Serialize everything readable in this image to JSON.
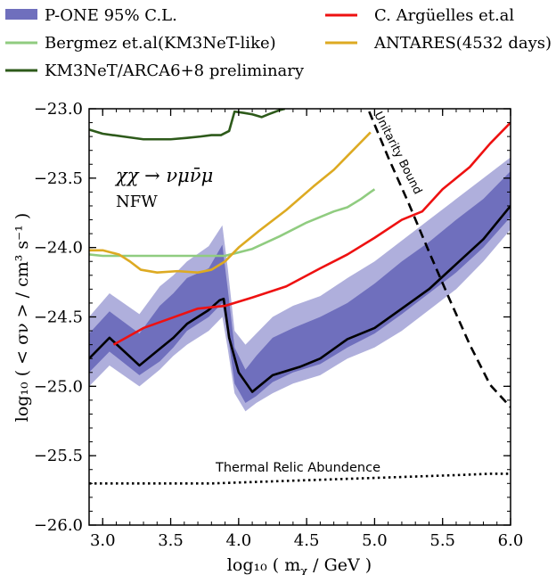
{
  "chart_data": {
    "type": "line",
    "xlabel": "log₁₀ ( m",
    "xlabel_sub": "χ",
    "xlabel_tail": " / GeV )",
    "ylabel": "log₁₀ ( < σν > / cm³ s⁻¹ )",
    "xlim": [
      2.9,
      6.0
    ],
    "ylim": [
      -26.0,
      -23.0
    ],
    "xticks": [
      "3.0",
      "3.5",
      "4.0",
      "4.5",
      "5.0",
      "5.5",
      "6.0"
    ],
    "yticks": [
      "−23.0",
      "−23.5",
      "−24.0",
      "−24.5",
      "−25.0",
      "−25.5",
      "−26.0"
    ],
    "legend": {
      "placement": "top",
      "entries": [
        {
          "label": "P-ONE 95% C.L.",
          "color": "#6f6fbd",
          "kind": "band"
        },
        {
          "label": "C. Argüelles et.al",
          "color": "#ee1111",
          "kind": "line"
        },
        {
          "label": "Bergmez et.al(KM3NeT-like)",
          "color": "#90cc80",
          "kind": "line"
        },
        {
          "label": "ANTARES(4532 days)",
          "color": "#ddaa22",
          "kind": "line"
        },
        {
          "label": "KM3NeT/ARCA6+8 preliminary",
          "color": "#2d5a1a",
          "kind": "line"
        }
      ]
    },
    "annotations": {
      "channel_formula": "χχ → νμν̄μ",
      "profile": "NFW",
      "unitarity": "Unitarity Bound",
      "thermal": "Thermal Relic Abundence"
    },
    "series": [
      {
        "name": "P-ONE 95% C.L.",
        "role": "outer_band",
        "color": "#afafdc",
        "x": [
          2.9,
          3.05,
          3.27,
          3.42,
          3.52,
          3.62,
          3.78,
          3.88,
          3.92,
          3.97,
          4.05,
          4.13,
          4.25,
          4.4,
          4.6,
          4.8,
          5.0,
          5.2,
          5.4,
          5.6,
          5.8,
          6.0
        ],
        "y_upper": [
          -24.5,
          -24.33,
          -24.48,
          -24.28,
          -24.2,
          -24.1,
          -23.99,
          -23.84,
          -24.15,
          -24.6,
          -24.7,
          -24.62,
          -24.5,
          -24.42,
          -24.35,
          -24.22,
          -24.1,
          -23.95,
          -23.8,
          -23.65,
          -23.5,
          -23.35
        ],
        "y_lower": [
          -25.0,
          -24.85,
          -25.0,
          -24.88,
          -24.78,
          -24.7,
          -24.6,
          -24.5,
          -24.73,
          -25.05,
          -25.18,
          -25.12,
          -25.05,
          -24.98,
          -24.92,
          -24.8,
          -24.72,
          -24.6,
          -24.45,
          -24.3,
          -24.1,
          -23.87
        ]
      },
      {
        "name": "P-ONE 95% C.L.",
        "role": "inner_band",
        "color": "#6f6fbd",
        "x": [
          2.9,
          3.05,
          3.27,
          3.42,
          3.52,
          3.62,
          3.78,
          3.88,
          3.92,
          3.97,
          4.05,
          4.13,
          4.25,
          4.4,
          4.6,
          4.8,
          5.0,
          5.2,
          5.4,
          5.6,
          5.8,
          6.0
        ],
        "y_upper": [
          -24.62,
          -24.46,
          -24.62,
          -24.42,
          -24.33,
          -24.22,
          -24.15,
          -23.98,
          -24.3,
          -24.72,
          -24.88,
          -24.78,
          -24.65,
          -24.58,
          -24.5,
          -24.4,
          -24.26,
          -24.1,
          -23.96,
          -23.8,
          -23.65,
          -23.45
        ],
        "y_lower": [
          -24.9,
          -24.75,
          -24.92,
          -24.82,
          -24.72,
          -24.6,
          -24.5,
          -24.4,
          -24.62,
          -24.98,
          -25.12,
          -25.07,
          -24.97,
          -24.9,
          -24.84,
          -24.72,
          -24.62,
          -24.48,
          -24.33,
          -24.18,
          -24.0,
          -23.78
        ]
      },
      {
        "name": "P-ONE median",
        "color": "#000000",
        "x": [
          2.9,
          3.05,
          3.27,
          3.42,
          3.52,
          3.62,
          3.78,
          3.86,
          3.89,
          3.93,
          4.0,
          4.1,
          4.25,
          4.45,
          4.6,
          4.8,
          5.0,
          5.2,
          5.4,
          5.6,
          5.8,
          6.0
        ],
        "y": [
          -24.8,
          -24.65,
          -24.85,
          -24.73,
          -24.65,
          -24.55,
          -24.45,
          -24.38,
          -24.37,
          -24.65,
          -24.9,
          -25.04,
          -24.92,
          -24.86,
          -24.8,
          -24.66,
          -24.58,
          -24.44,
          -24.3,
          -24.12,
          -23.94,
          -23.7
        ]
      },
      {
        "name": "C. Argüelles et.al",
        "color": "#ee1111",
        "x": [
          3.08,
          3.3,
          3.5,
          3.7,
          3.9,
          4.1,
          4.35,
          4.6,
          4.8,
          5.0,
          5.2,
          5.35,
          5.5,
          5.7,
          5.85,
          6.0
        ],
        "y": [
          -24.7,
          -24.58,
          -24.51,
          -24.44,
          -24.42,
          -24.36,
          -24.28,
          -24.15,
          -24.05,
          -23.93,
          -23.8,
          -23.74,
          -23.58,
          -23.42,
          -23.25,
          -23.1
        ]
      },
      {
        "name": "Bergmez et.al(KM3NeT-like)",
        "color": "#90cc80",
        "x": [
          2.9,
          3.0,
          3.3,
          3.6,
          3.9,
          4.1,
          4.3,
          4.5,
          4.7,
          4.8,
          4.9,
          4.97,
          5.0
        ],
        "y": [
          -24.05,
          -24.06,
          -24.06,
          -24.06,
          -24.06,
          -24.01,
          -23.92,
          -23.82,
          -23.74,
          -23.71,
          -23.65,
          -23.6,
          -23.58
        ]
      },
      {
        "name": "ANTARES(4532 days)",
        "color": "#ddaa22",
        "x": [
          2.9,
          3.0,
          3.12,
          3.2,
          3.28,
          3.4,
          3.55,
          3.7,
          3.8,
          3.9,
          4.0,
          4.15,
          4.35,
          4.55,
          4.7,
          4.82,
          4.9,
          4.97
        ],
        "y": [
          -24.02,
          -24.02,
          -24.05,
          -24.1,
          -24.16,
          -24.18,
          -24.17,
          -24.18,
          -24.16,
          -24.1,
          -24.0,
          -23.88,
          -23.73,
          -23.56,
          -23.44,
          -23.32,
          -23.24,
          -23.17
        ]
      },
      {
        "name": "KM3NeT/ARCA6+8 preliminary",
        "color": "#2d5a1a",
        "x": [
          2.9,
          3.0,
          3.15,
          3.3,
          3.5,
          3.62,
          3.72,
          3.8,
          3.87,
          3.93,
          3.97,
          4.04,
          4.1,
          4.17,
          4.22,
          4.3,
          4.34
        ],
        "y": [
          -23.15,
          -23.18,
          -23.2,
          -23.22,
          -23.22,
          -23.21,
          -23.2,
          -23.19,
          -23.19,
          -23.16,
          -23.02,
          -23.03,
          -23.04,
          -23.06,
          -23.04,
          -23.01,
          -23.0
        ]
      },
      {
        "name": "Unitarity Bound",
        "color": "#000000",
        "dash": "dashed",
        "x": [
          4.96,
          5.1,
          5.25,
          5.4,
          5.55,
          5.7,
          5.85,
          6.0
        ],
        "y": [
          -23.02,
          -23.35,
          -23.68,
          -24.03,
          -24.37,
          -24.7,
          -24.99,
          -25.15
        ]
      },
      {
        "name": "Thermal Relic Abundence",
        "color": "#000000",
        "dash": "dotted",
        "x": [
          2.9,
          3.2,
          3.5,
          3.8,
          4.1,
          4.4,
          4.7,
          5.0,
          5.3,
          5.6,
          5.85,
          6.0
        ],
        "y": [
          -25.7,
          -25.7,
          -25.7,
          -25.7,
          -25.69,
          -25.68,
          -25.67,
          -25.66,
          -25.65,
          -25.64,
          -25.63,
          -25.63
        ]
      }
    ]
  }
}
